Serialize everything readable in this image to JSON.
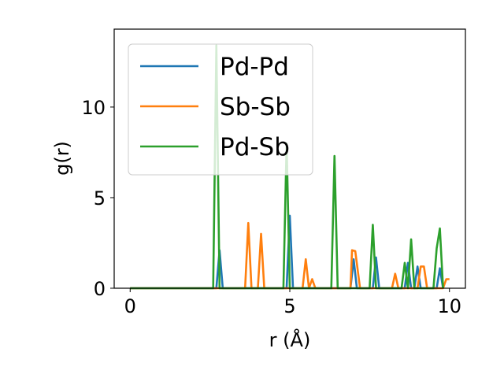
{
  "chart_data": {
    "type": "line",
    "title": "",
    "xlabel": "r (Å)",
    "ylabel": "g(r)",
    "xlim": [
      -0.5,
      10.5
    ],
    "ylim": [
      0,
      14.3
    ],
    "xticks": [
      0,
      5,
      10
    ],
    "xtick_labels": [
      "0",
      "5",
      "10"
    ],
    "yticks": [
      0,
      5,
      10
    ],
    "ytick_labels": [
      "0",
      "5",
      "10"
    ],
    "grid": false,
    "legend_position": "upper-left",
    "series": [
      {
        "name": "Pd-Pd",
        "color": "#1f77b4",
        "x": [
          0,
          2.7,
          2.8,
          2.9,
          4.9,
          5.0,
          5.1,
          6.9,
          7.0,
          7.1,
          7.6,
          7.7,
          7.8,
          8.6,
          8.7,
          8.8,
          8.9,
          9.0,
          9.1,
          9.6,
          9.7,
          9.8
        ],
        "y": [
          0,
          0,
          2.1,
          0,
          0,
          4.0,
          0,
          0,
          1.6,
          0,
          0,
          1.7,
          0,
          0,
          1.4,
          0,
          0,
          1.2,
          0,
          0,
          1.1,
          0
        ]
      },
      {
        "name": "Sb-Sb",
        "color": "#ff7f0e",
        "x": [
          0,
          3.6,
          3.7,
          3.8,
          4.0,
          4.1,
          4.2,
          5.4,
          5.5,
          5.6,
          5.7,
          5.8,
          6.9,
          6.95,
          7.05,
          7.2,
          8.2,
          8.3,
          8.4,
          9.0,
          9.1,
          9.2,
          9.3,
          9.8,
          9.9,
          10.0
        ],
        "y": [
          0,
          0,
          3.6,
          0,
          0,
          3.0,
          0,
          0,
          1.6,
          0,
          0.5,
          0,
          0,
          2.1,
          2.05,
          0,
          0,
          0.8,
          0,
          0,
          1.2,
          1.2,
          0,
          0,
          0.5,
          0.5
        ]
      },
      {
        "name": "Pd-Sb",
        "color": "#2ca02c",
        "x": [
          0,
          2.6,
          2.7,
          2.8,
          4.8,
          4.9,
          5.0,
          6.3,
          6.4,
          6.5,
          7.5,
          7.6,
          7.7,
          8.5,
          8.6,
          8.7,
          8.8,
          8.9,
          9.5,
          9.6,
          9.7,
          9.8
        ],
        "y": [
          0,
          0,
          13.4,
          0,
          0,
          8.0,
          0,
          0,
          7.3,
          0,
          0,
          3.5,
          0,
          0,
          1.4,
          0,
          2.7,
          0,
          0,
          2.2,
          3.3,
          0
        ]
      }
    ]
  }
}
